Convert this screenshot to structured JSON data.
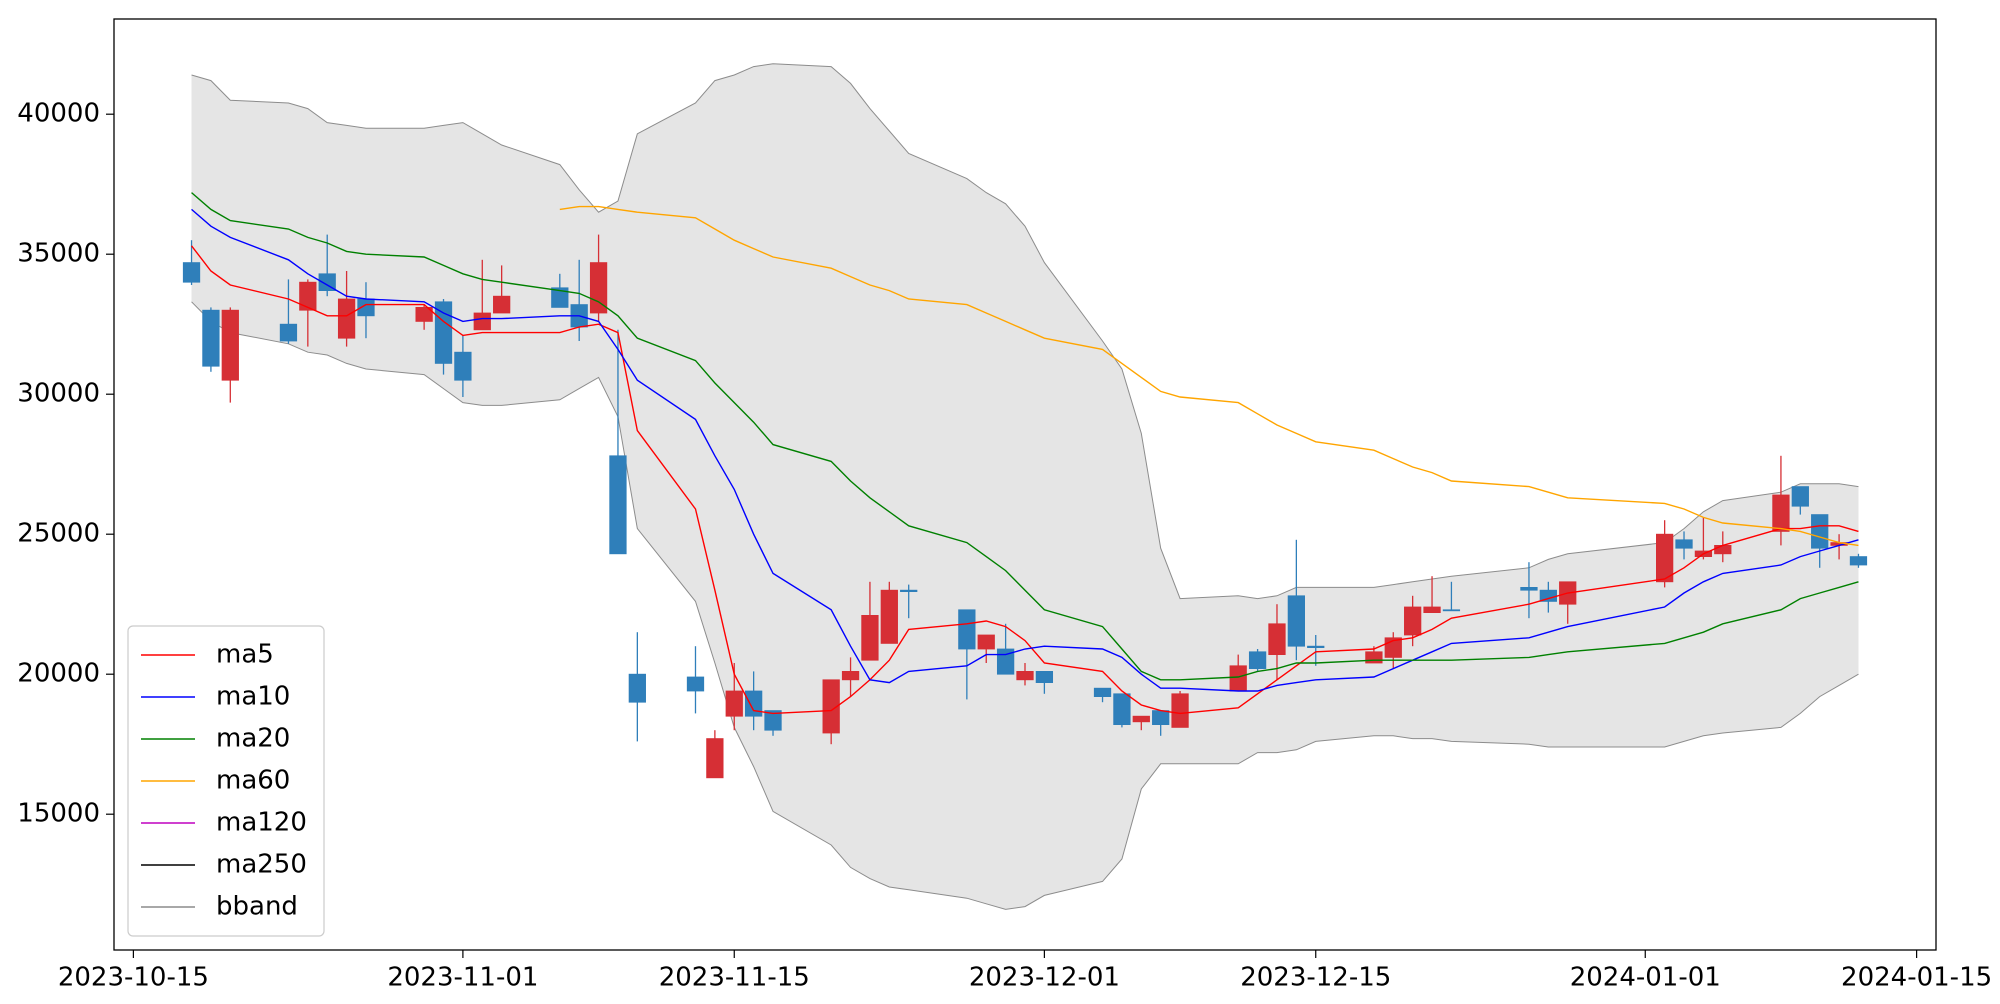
{
  "chart_data": {
    "type": "candlestick",
    "x": [
      "2023-10-18",
      "2023-10-19",
      "2023-10-20",
      "2023-10-23",
      "2023-10-24",
      "2023-10-25",
      "2023-10-26",
      "2023-10-27",
      "2023-10-30",
      "2023-10-31",
      "2023-11-01",
      "2023-11-02",
      "2023-11-03",
      "2023-11-06",
      "2023-11-07",
      "2023-11-08",
      "2023-11-09",
      "2023-11-10",
      "2023-11-13",
      "2023-11-14",
      "2023-11-15",
      "2023-11-16",
      "2023-11-17",
      "2023-11-20",
      "2023-11-21",
      "2023-11-22",
      "2023-11-23",
      "2023-11-24",
      "2023-11-27",
      "2023-11-28",
      "2023-11-29",
      "2023-11-30",
      "2023-12-01",
      "2023-12-04",
      "2023-12-05",
      "2023-12-06",
      "2023-12-07",
      "2023-12-08",
      "2023-12-11",
      "2023-12-12",
      "2023-12-13",
      "2023-12-14",
      "2023-12-15",
      "2023-12-18",
      "2023-12-19",
      "2023-12-20",
      "2023-12-21",
      "2023-12-22",
      "2023-12-26",
      "2023-12-27",
      "2023-12-28",
      "2024-01-02",
      "2024-01-03",
      "2024-01-04",
      "2024-01-05",
      "2024-01-08",
      "2024-01-09",
      "2024-01-10",
      "2024-01-11",
      "2024-01-12"
    ],
    "open": [
      34700,
      33000,
      30500,
      32500,
      33000,
      34300,
      32000,
      33400,
      32600,
      33300,
      31500,
      32300,
      32900,
      33800,
      33200,
      32900,
      27800,
      20000,
      19900,
      16300,
      18500,
      19400,
      18700,
      17900,
      19800,
      20500,
      21100,
      23000,
      22300,
      20900,
      20900,
      19800,
      20100,
      19500,
      19300,
      18300,
      18700,
      18100,
      19400,
      20800,
      20700,
      22800,
      21000,
      20400,
      20600,
      21400,
      22200,
      22300,
      23100,
      23000,
      22500,
      23300,
      24800,
      24200,
      24300,
      25100,
      26700,
      25700,
      24600,
      24200
    ],
    "high": [
      35500,
      33100,
      33100,
      34100,
      34100,
      35700,
      34400,
      34000,
      33200,
      33400,
      32100,
      34800,
      34600,
      34300,
      34800,
      35700,
      32300,
      21500,
      21000,
      18000,
      20400,
      20100,
      18700,
      19800,
      20600,
      23300,
      23300,
      23200,
      22300,
      21400,
      21800,
      20400,
      20100,
      19500,
      19300,
      18500,
      18700,
      19400,
      20700,
      20900,
      22500,
      24800,
      21400,
      21000,
      21500,
      22800,
      23500,
      23300,
      24000,
      23300,
      23300,
      25500,
      25100,
      25600,
      25100,
      27800,
      26700,
      25700,
      25000,
      24300
    ],
    "low": [
      33900,
      30800,
      29700,
      31800,
      31700,
      33500,
      31700,
      32000,
      32300,
      30700,
      29900,
      32300,
      32900,
      33100,
      31900,
      32600,
      24300,
      17600,
      18600,
      16300,
      18000,
      18000,
      17800,
      17500,
      19200,
      20500,
      21100,
      22000,
      19100,
      20400,
      20000,
      19600,
      19300,
      19000,
      18100,
      18000,
      17800,
      18100,
      19400,
      20100,
      19800,
      20500,
      20300,
      20400,
      20200,
      21000,
      22200,
      22280,
      22000,
      22200,
      21800,
      23100,
      24100,
      24100,
      24000,
      24600,
      25700,
      23800,
      24100,
      23800
    ],
    "close": [
      34000,
      31000,
      33000,
      31900,
      34000,
      33700,
      33400,
      32800,
      33100,
      31100,
      30500,
      32900,
      33500,
      33100,
      32400,
      34700,
      24300,
      19000,
      19400,
      17700,
      19400,
      18500,
      18000,
      19800,
      20100,
      22100,
      23000,
      22950,
      20900,
      21400,
      20000,
      20100,
      19700,
      19200,
      18200,
      18500,
      18200,
      19300,
      20300,
      20200,
      21800,
      21000,
      20950,
      20800,
      21300,
      22400,
      22400,
      22280,
      23000,
      22600,
      23300,
      25000,
      24500,
      24400,
      24600,
      26400,
      26000,
      24500,
      24700,
      23900
    ],
    "up_color": "#d62f35",
    "down_color": "#2f7fba",
    "series": [
      {
        "name": "ma5",
        "color": "#ff0000",
        "values": [
          35300,
          34400,
          33900,
          33400,
          33100,
          32800,
          32800,
          33200,
          33200,
          32600,
          32100,
          32200,
          32200,
          32200,
          32400,
          32500,
          32200,
          28700,
          25900,
          23000,
          20000,
          18700,
          18600,
          18700,
          19200,
          19800,
          20500,
          21600,
          21800,
          21900,
          21700,
          21200,
          20400,
          20100,
          19400,
          18900,
          18700,
          18600,
          18800,
          19300,
          19800,
          20300,
          20800,
          20900,
          21200,
          21300,
          21600,
          22000,
          22500,
          22700,
          22900,
          23400,
          23800,
          24300,
          24600,
          25200,
          25200,
          25300,
          25300,
          25100
        ]
      },
      {
        "name": "ma10",
        "color": "#0000ff",
        "values": [
          36600,
          36000,
          35600,
          34800,
          34300,
          33900,
          33500,
          33400,
          33300,
          32900,
          32600,
          32700,
          32700,
          32800,
          32800,
          32600,
          31600,
          30500,
          29100,
          27800,
          26600,
          25000,
          23600,
          22300,
          21000,
          19800,
          19700,
          20100,
          20300,
          20700,
          20700,
          20900,
          21000,
          20900,
          20600,
          20000,
          19500,
          19500,
          19400,
          19400,
          19600,
          19700,
          19800,
          19900,
          20200,
          20500,
          20800,
          21100,
          21300,
          21500,
          21700,
          22400,
          22900,
          23300,
          23600,
          23900,
          24200,
          24400,
          24600,
          24800
        ]
      },
      {
        "name": "ma20",
        "color": "#008000",
        "values": [
          37200,
          36600,
          36200,
          35900,
          35600,
          35400,
          35100,
          35000,
          34900,
          34600,
          34300,
          34100,
          34000,
          33700,
          33600,
          33300,
          32800,
          32000,
          31200,
          30400,
          29700,
          29000,
          28200,
          27600,
          26900,
          26300,
          25800,
          25300,
          24700,
          24200,
          23700,
          23000,
          22300,
          21700,
          20900,
          20100,
          19800,
          19800,
          19900,
          20100,
          20200,
          20400,
          20400,
          20500,
          20500,
          20500,
          20500,
          20500,
          20600,
          20700,
          20800,
          21100,
          21300,
          21500,
          21800,
          22300,
          22700,
          22900,
          23100,
          23300
        ]
      },
      {
        "name": "ma60",
        "color": "#ffa500",
        "values": [
          null,
          null,
          null,
          null,
          null,
          null,
          null,
          null,
          null,
          null,
          null,
          null,
          null,
          36600,
          36700,
          36700,
          36600,
          36500,
          36300,
          35900,
          35500,
          35200,
          34900,
          34500,
          34200,
          33900,
          33700,
          33400,
          33200,
          32900,
          32600,
          32300,
          32000,
          31600,
          31100,
          30600,
          30100,
          29900,
          29700,
          29300,
          28900,
          28600,
          28300,
          28000,
          27700,
          27400,
          27200,
          26900,
          26700,
          26500,
          26300,
          26100,
          25900,
          25600,
          25400,
          25200,
          25100,
          24900,
          24700,
          24600
        ]
      },
      {
        "name": "ma120",
        "color": "#bf00bf",
        "values": [
          null,
          null,
          null,
          null,
          null,
          null,
          null,
          null,
          null,
          null,
          null,
          null,
          null,
          null,
          null,
          null,
          null,
          null,
          null,
          null,
          null,
          null,
          null,
          null,
          null,
          null,
          null,
          null,
          null,
          null,
          null,
          null,
          null,
          null,
          null,
          null,
          null,
          null,
          null,
          null,
          null,
          null,
          null,
          null,
          null,
          null,
          null,
          null,
          null,
          null,
          null,
          null,
          null,
          null,
          null,
          null,
          null,
          null,
          null,
          null
        ]
      },
      {
        "name": "ma250",
        "color": "#000000",
        "values": [
          null,
          null,
          null,
          null,
          null,
          null,
          null,
          null,
          null,
          null,
          null,
          null,
          null,
          null,
          null,
          null,
          null,
          null,
          null,
          null,
          null,
          null,
          null,
          null,
          null,
          null,
          null,
          null,
          null,
          null,
          null,
          null,
          null,
          null,
          null,
          null,
          null,
          null,
          null,
          null,
          null,
          null,
          null,
          null,
          null,
          null,
          null,
          null,
          null,
          null,
          null,
          null,
          null,
          null,
          null,
          null,
          null,
          null,
          null,
          null
        ]
      }
    ],
    "bband": {
      "name": "bband",
      "color": "#8c8c8c",
      "fill": "#e5e5e5",
      "upper": [
        41400,
        41200,
        40500,
        40400,
        40200,
        39700,
        39600,
        39500,
        39500,
        39600,
        39700,
        39300,
        38900,
        38200,
        37300,
        36500,
        36900,
        39300,
        40400,
        41200,
        41400,
        41700,
        41800,
        41700,
        41100,
        40200,
        39400,
        38600,
        37700,
        37200,
        36800,
        36000,
        34700,
        31900,
        30900,
        28600,
        24500,
        22700,
        22800,
        22700,
        22800,
        23100,
        23100,
        23100,
        23200,
        23300,
        23400,
        23500,
        23800,
        24100,
        24300,
        24700,
        25200,
        25800,
        26200,
        26500,
        26800,
        26800,
        26800,
        26700
      ],
      "lower": [
        33300,
        32600,
        32200,
        31800,
        31500,
        31400,
        31100,
        30900,
        30700,
        30200,
        29700,
        29600,
        29600,
        29800,
        30200,
        30600,
        29200,
        25200,
        22600,
        20400,
        18100,
        16700,
        15100,
        13900,
        13100,
        12700,
        12400,
        12300,
        12000,
        11800,
        11600,
        11700,
        12100,
        12600,
        13400,
        15900,
        16800,
        16800,
        16800,
        17200,
        17200,
        17300,
        17600,
        17800,
        17800,
        17700,
        17700,
        17600,
        17500,
        17400,
        17400,
        17400,
        17600,
        17800,
        17900,
        18100,
        18600,
        19200,
        19600,
        20000
      ]
    },
    "xlim": [
      "2023-10-14",
      "2024-01-16"
    ],
    "xticks": [
      "2023-10-15",
      "2023-11-01",
      "2023-11-15",
      "2023-12-01",
      "2023-12-15",
      "2024-01-01",
      "2024-01-15"
    ],
    "ylim": [
      10150,
      43400
    ],
    "yticks": [
      15000,
      20000,
      25000,
      30000,
      35000,
      40000
    ],
    "legend": "lower left"
  }
}
